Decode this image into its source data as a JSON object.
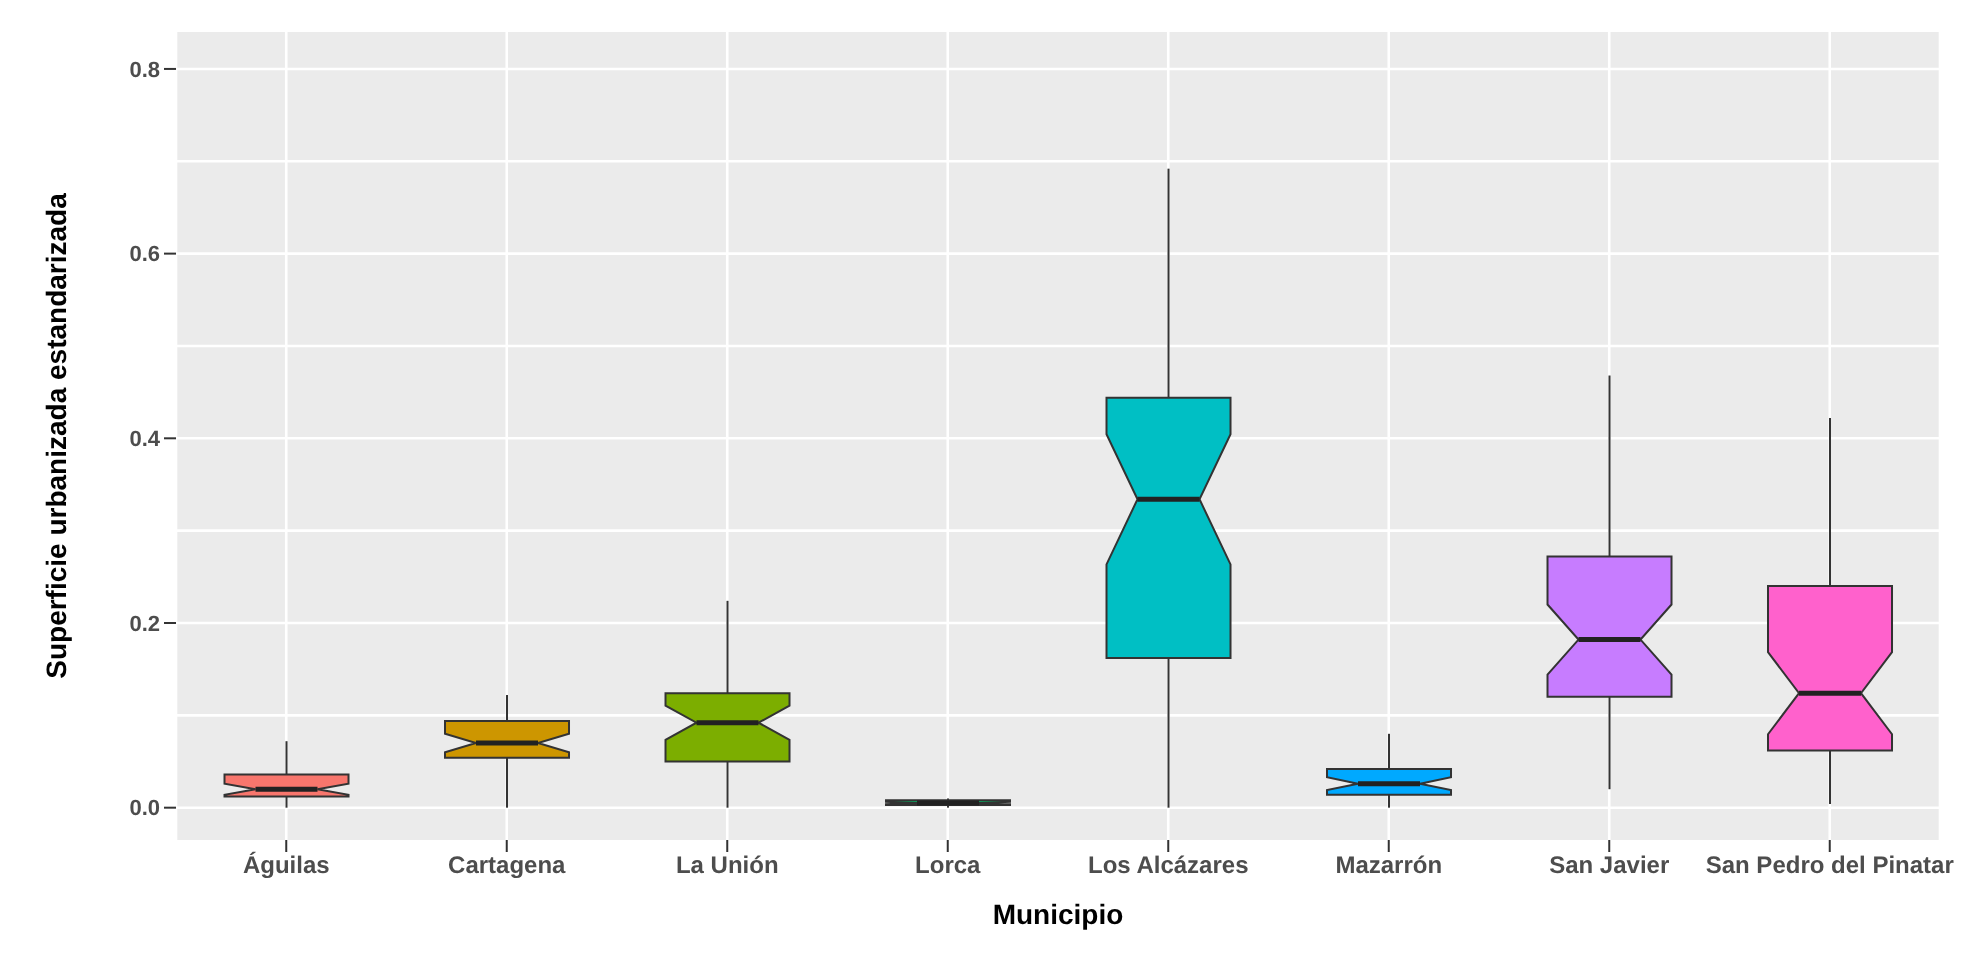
{
  "chart_data": {
    "type": "box",
    "xlabel": "Municipio",
    "ylabel": "Superficie urbanizada estandarizada",
    "categories": [
      "Águilas",
      "Cartagena",
      "La Unión",
      "Lorca",
      "Los Alcázares",
      "Mazarrón",
      "San Javier",
      "San Pedro del Pinatar"
    ],
    "colors": [
      "#f8766d",
      "#cd9600",
      "#7cae00",
      "#00be67",
      "#00bfc4",
      "#00a9ff",
      "#c77cff",
      "#ff61cc"
    ],
    "boxes": [
      {
        "low": 0.0,
        "q1": 0.012,
        "median": 0.02,
        "q3": 0.036,
        "high": 0.072
      },
      {
        "low": 0.0,
        "q1": 0.054,
        "median": 0.07,
        "q3": 0.094,
        "high": 0.122
      },
      {
        "low": 0.0,
        "q1": 0.05,
        "median": 0.092,
        "q3": 0.124,
        "high": 0.224
      },
      {
        "low": 0.0,
        "q1": 0.003,
        "median": 0.005,
        "q3": 0.008,
        "high": 0.01
      },
      {
        "low": 0.0,
        "q1": 0.162,
        "median": 0.334,
        "q3": 0.444,
        "high": 0.692
      },
      {
        "low": 0.0,
        "q1": 0.014,
        "median": 0.026,
        "q3": 0.042,
        "high": 0.08
      },
      {
        "low": 0.02,
        "q1": 0.12,
        "median": 0.182,
        "q3": 0.272,
        "high": 0.468
      },
      {
        "low": 0.004,
        "q1": 0.062,
        "median": 0.124,
        "q3": 0.24,
        "high": 0.422
      }
    ],
    "ylim": [
      -0.035,
      0.84
    ],
    "yticks": [
      {
        "value": 0,
        "label": "0.0"
      },
      {
        "value": 0.2,
        "label": "0.2"
      },
      {
        "value": 0.4,
        "label": "0.4"
      },
      {
        "value": 0.6,
        "label": "0.6"
      },
      {
        "value": 0.8,
        "label": "0.8"
      }
    ],
    "grid": true
  }
}
